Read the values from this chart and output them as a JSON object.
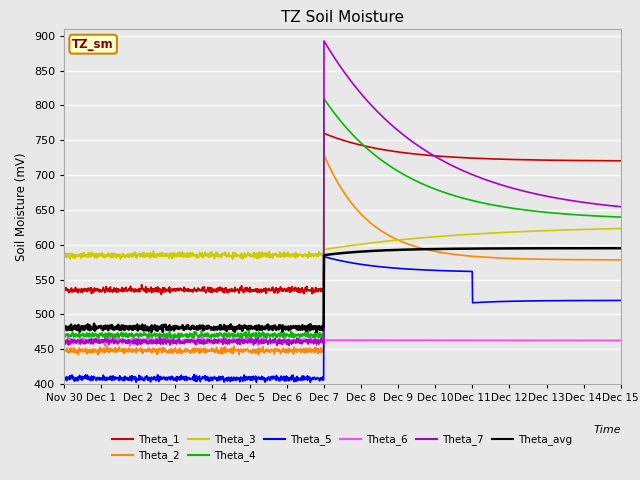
{
  "title": "TZ Soil Moisture",
  "ylabel": "Soil Moisture (mV)",
  "xlabel": "Time",
  "box_label": "TZ_sm",
  "ylim": [
    400,
    910
  ],
  "yticks": [
    400,
    450,
    500,
    550,
    600,
    650,
    700,
    750,
    800,
    850,
    900
  ],
  "num_points": 1500,
  "peak_day": 7.0,
  "total_days": 15.0,
  "series": {
    "Theta_1": {
      "color": "#cc0000",
      "pre_value": 535,
      "peak": 760,
      "final": 720,
      "fall_tau": 1.8
    },
    "Theta_2": {
      "color": "#ff8800",
      "pre_value": 448,
      "peak": 730,
      "final": 578,
      "fall_tau": 1.2
    },
    "Theta_3": {
      "color": "#cccc00",
      "pre_value": 585,
      "peak": 593,
      "final": 628,
      "fall_tau": 4.0
    },
    "Theta_4": {
      "color": "#00bb00",
      "pre_value": 470,
      "peak": 810,
      "final": 635,
      "fall_tau": 2.2
    },
    "Theta_5": {
      "color": "#0000ff",
      "pre_value": 408,
      "peak": 583,
      "final": 560,
      "fall_tau": 1.5,
      "step_down": true,
      "step_day": 11.0,
      "step_amount": 45,
      "post_step_final": 520
    },
    "Theta_6": {
      "color": "#ff44ff",
      "pre_value": 462,
      "peak": 463,
      "final": 458,
      "fall_tau": 100.0
    },
    "Theta_7": {
      "color": "#aa00cc",
      "pre_value": 461,
      "peak": 893,
      "final": 640,
      "fall_tau": 2.8
    },
    "Theta_avg": {
      "color": "#000000",
      "pre_value": 481,
      "peak": 585,
      "final": 595,
      "fall_tau": 1.4
    }
  },
  "xtick_labels": [
    "Nov 30",
    "Dec 1",
    "Dec 2",
    "Dec 3",
    "Dec 4",
    "Dec 5",
    "Dec 6",
    "Dec 7",
    "Dec 8",
    "Dec 9",
    "Dec 10",
    "Dec 11",
    "Dec 12",
    "Dec 13",
    "Dec 14",
    "Dec 15"
  ],
  "background_color": "#e8e8e8",
  "plot_bg_color": "#e8e8e8",
  "grid_color": "#ffffff",
  "linewidth": 1.2,
  "avg_linewidth": 1.8
}
